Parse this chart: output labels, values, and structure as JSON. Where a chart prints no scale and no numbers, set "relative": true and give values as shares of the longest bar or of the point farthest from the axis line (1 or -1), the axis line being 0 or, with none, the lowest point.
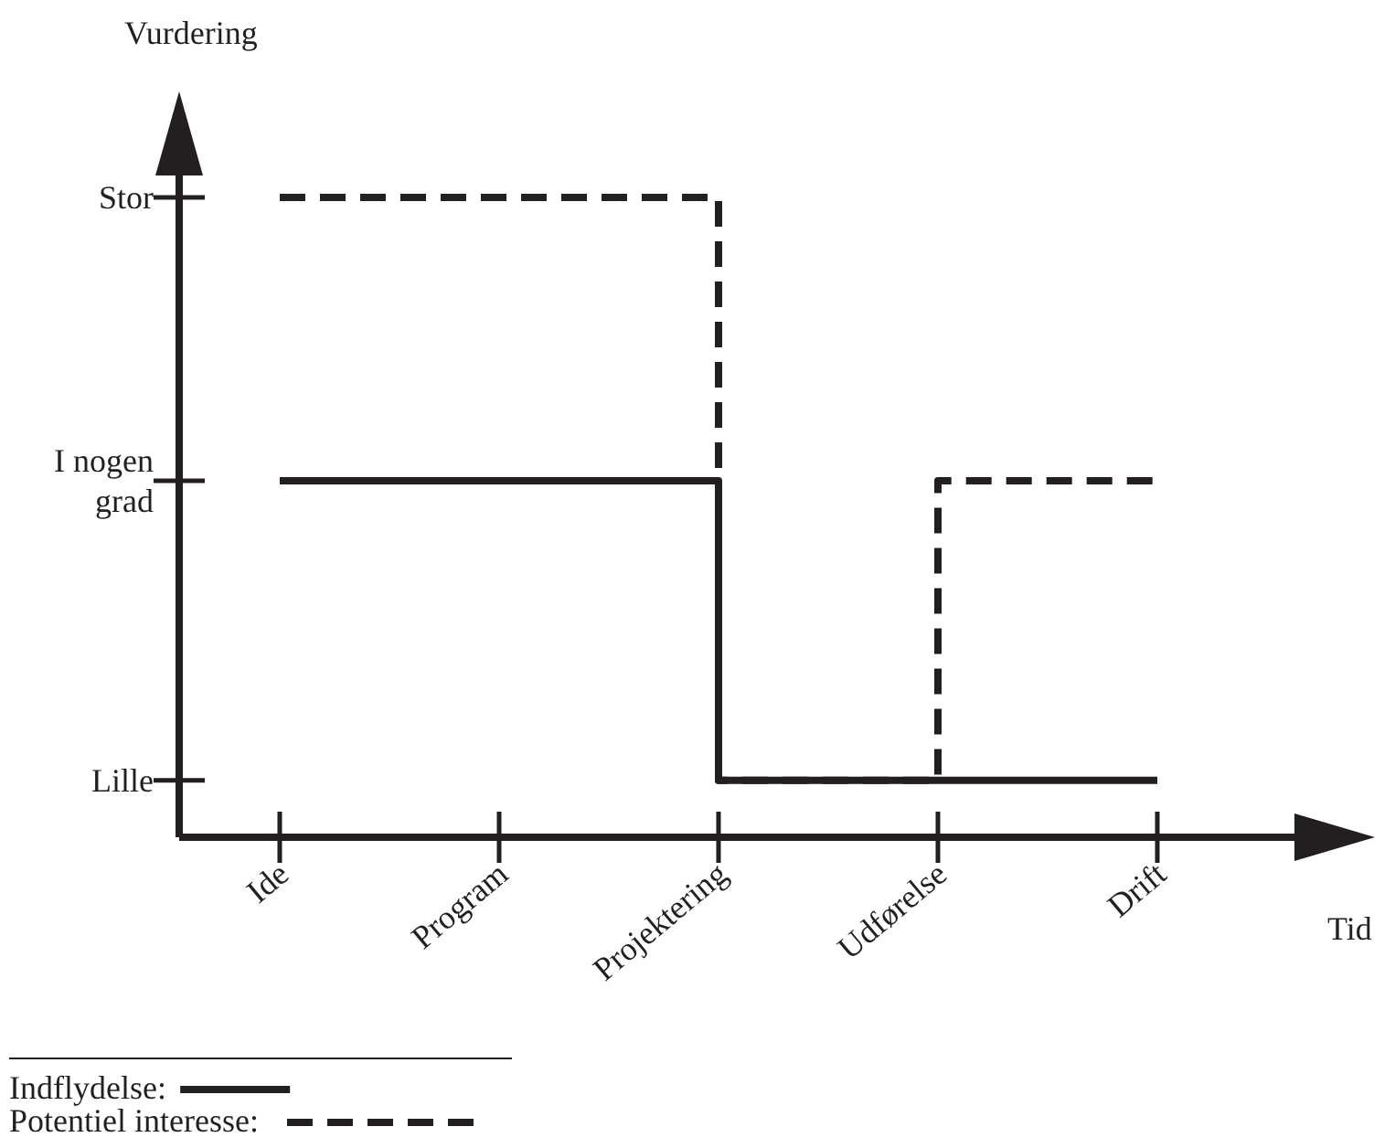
{
  "chart_data": {
    "type": "step",
    "xlabel": "Tid",
    "ylabel": "Vurdering",
    "relative": true,
    "categories": [
      "Ide",
      "Program",
      "Projektering",
      "Udførelse",
      "Drift"
    ],
    "annotations": [
      "Lille",
      "I nogen grad",
      "Stor"
    ],
    "grid": false,
    "marker": "none",
    "legend": "bottom left",
    "series": [
      {
        "name": "Indflydelse:",
        "color": "#231f20",
        "line_style": "solid",
        "values": [
          0.557,
          0.557,
          0.089,
          0.089,
          0.089
        ]
      },
      {
        "name": "Potentiel interesse:",
        "color": "#231f20",
        "line_style": "dashed",
        "values": [
          1,
          1,
          0.089,
          0.557,
          0.557
        ]
      }
    ]
  }
}
